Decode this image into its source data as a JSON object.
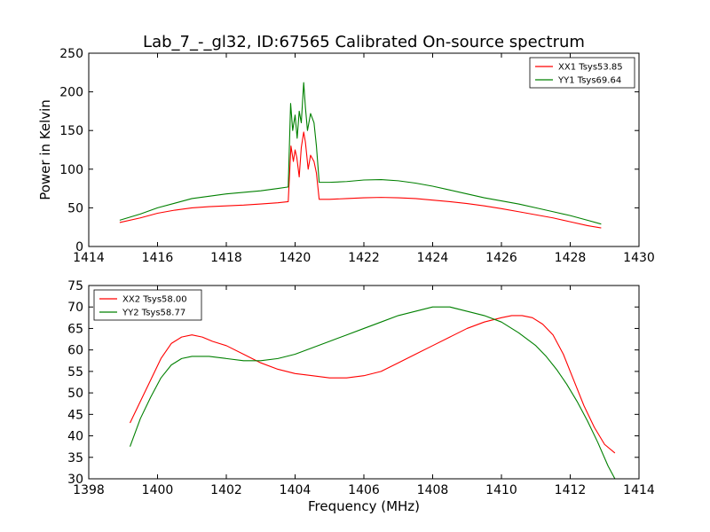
{
  "figure_title": "Lab_7_-_gl32, ID:67565 Calibrated On-source spectrum",
  "chart_data": [
    {
      "type": "line",
      "xlabel": "",
      "ylabel": "Power in Kelvin",
      "xlim": [
        1414,
        1430
      ],
      "ylim": [
        0,
        250
      ],
      "xticks": [
        1414,
        1416,
        1418,
        1420,
        1422,
        1424,
        1426,
        1428,
        1430
      ],
      "yticks": [
        0,
        50,
        100,
        150,
        200,
        250
      ],
      "grid": false,
      "legend_position": "upper right",
      "series": [
        {
          "name": "XX1 Tsys53.85",
          "color": "#ff0000",
          "x": [
            1414.9,
            1415.5,
            1416.0,
            1416.5,
            1417.0,
            1417.5,
            1418.0,
            1418.5,
            1419.0,
            1419.5,
            1419.8,
            1419.88,
            1419.95,
            1420.0,
            1420.05,
            1420.12,
            1420.18,
            1420.25,
            1420.3,
            1420.38,
            1420.45,
            1420.55,
            1420.62,
            1420.7,
            1421.0,
            1421.5,
            1422.0,
            1422.5,
            1423.0,
            1423.5,
            1424.0,
            1424.5,
            1425.0,
            1425.5,
            1426.0,
            1426.5,
            1427.0,
            1427.5,
            1428.0,
            1428.5,
            1428.9
          ],
          "y": [
            31,
            37,
            43,
            47,
            50,
            51.5,
            52.5,
            53.5,
            55,
            56.5,
            58,
            130,
            110,
            125,
            115,
            90,
            128,
            148,
            135,
            100,
            118,
            110,
            95,
            61,
            61,
            62,
            63,
            63.5,
            63,
            62,
            60,
            58,
            55.5,
            52.5,
            49,
            45,
            41,
            37,
            32,
            27,
            24
          ]
        },
        {
          "name": "YY1 Tsys69.64",
          "color": "#008000",
          "x": [
            1414.9,
            1415.5,
            1416.0,
            1416.5,
            1417.0,
            1417.5,
            1418.0,
            1418.5,
            1419.0,
            1419.5,
            1419.8,
            1419.87,
            1419.93,
            1420.0,
            1420.06,
            1420.12,
            1420.18,
            1420.25,
            1420.3,
            1420.36,
            1420.45,
            1420.55,
            1420.62,
            1420.7,
            1421.0,
            1421.5,
            1422.0,
            1422.5,
            1423.0,
            1423.5,
            1424.0,
            1424.5,
            1425.0,
            1425.5,
            1426.0,
            1426.5,
            1427.0,
            1427.5,
            1428.0,
            1428.5,
            1428.9
          ],
          "y": [
            34,
            42,
            50,
            56,
            62,
            65,
            68,
            70,
            72,
            75,
            77,
            185,
            150,
            170,
            140,
            175,
            160,
            212,
            180,
            150,
            172,
            160,
            130,
            83,
            83,
            84,
            86,
            86.5,
            85,
            82,
            78,
            73,
            68,
            63,
            59,
            55,
            50,
            45,
            40,
            34,
            29
          ]
        }
      ]
    },
    {
      "type": "line",
      "xlabel": "Frequency (MHz)",
      "ylabel": "",
      "xlim": [
        1398,
        1414
      ],
      "ylim": [
        30,
        75
      ],
      "xticks": [
        1398,
        1400,
        1402,
        1404,
        1406,
        1408,
        1410,
        1412,
        1414
      ],
      "yticks": [
        30,
        35,
        40,
        45,
        50,
        55,
        60,
        65,
        70,
        75
      ],
      "grid": false,
      "legend_position": "upper left",
      "series": [
        {
          "name": "XX2 Tsys58.00",
          "color": "#ff0000",
          "x": [
            1399.2,
            1399.5,
            1399.8,
            1400.1,
            1400.4,
            1400.7,
            1401.0,
            1401.3,
            1401.6,
            1402.0,
            1402.5,
            1403.0,
            1403.5,
            1404.0,
            1404.5,
            1405.0,
            1405.5,
            1406.0,
            1406.5,
            1407.0,
            1407.5,
            1408.0,
            1408.5,
            1409.0,
            1409.5,
            1410.0,
            1410.3,
            1410.6,
            1410.9,
            1411.2,
            1411.5,
            1411.8,
            1412.1,
            1412.4,
            1412.7,
            1413.0,
            1413.3
          ],
          "y": [
            43,
            48,
            53,
            58,
            61.5,
            63,
            63.5,
            63,
            62,
            61,
            59,
            57,
            55.5,
            54.5,
            54,
            53.5,
            53.5,
            54,
            55,
            57,
            59,
            61,
            63,
            65,
            66.5,
            67.5,
            68,
            68,
            67.5,
            66,
            63.5,
            59,
            53,
            47,
            42,
            38,
            36
          ]
        },
        {
          "name": "YY2 Tsys58.77",
          "color": "#008000",
          "x": [
            1399.2,
            1399.5,
            1399.8,
            1400.1,
            1400.4,
            1400.7,
            1401.0,
            1401.5,
            1402.0,
            1402.5,
            1403.0,
            1403.5,
            1404.0,
            1404.5,
            1405.0,
            1405.5,
            1406.0,
            1406.5,
            1407.0,
            1407.5,
            1408.0,
            1408.5,
            1409.0,
            1409.5,
            1410.0,
            1410.5,
            1411.0,
            1411.3,
            1411.6,
            1411.9,
            1412.2,
            1412.5,
            1412.8,
            1413.1,
            1413.3
          ],
          "y": [
            37.5,
            44,
            49,
            53.5,
            56.5,
            58,
            58.5,
            58.5,
            58,
            57.5,
            57.5,
            58,
            59,
            60.5,
            62,
            63.5,
            65,
            66.5,
            68,
            69,
            70,
            70,
            69,
            68,
            66.5,
            64,
            61,
            58.5,
            55.5,
            52,
            48,
            43.5,
            38.5,
            33,
            30
          ]
        }
      ]
    }
  ]
}
